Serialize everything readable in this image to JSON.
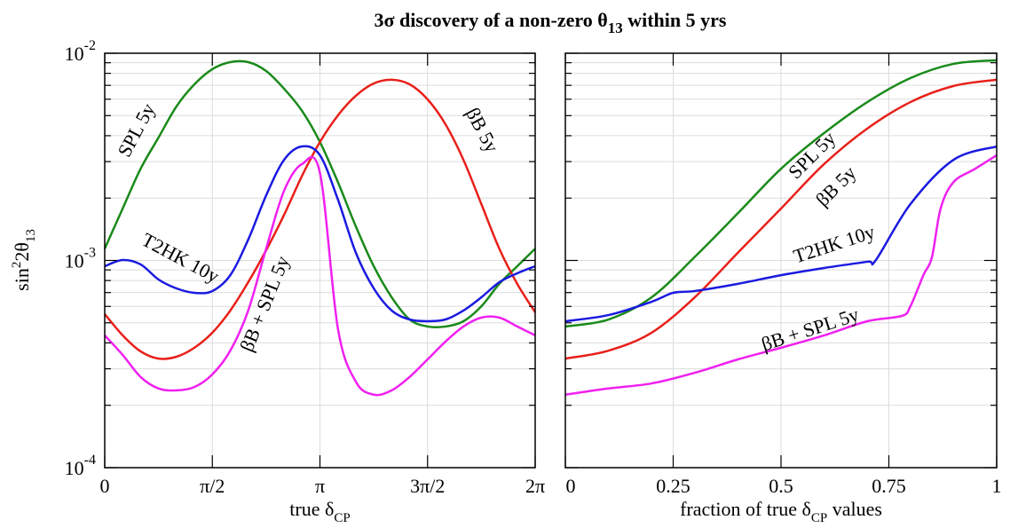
{
  "title": [
    "3σ discovery of a non-zero θ",
    "13",
    " within 5 yrs"
  ],
  "chart_data": [
    {
      "type": "line",
      "yscale": "log",
      "grid": true,
      "xlabel": [
        "true δ",
        "CP"
      ],
      "ylabel": [
        "sin",
        "2",
        "2θ",
        "13"
      ],
      "xlim": [
        0,
        6.2832
      ],
      "xticks": [
        0,
        {
          "value": 1.5708,
          "label": "π/2"
        },
        {
          "value": 3.1416,
          "label": "π"
        },
        {
          "value": 4.7124,
          "label": "3π/2"
        },
        {
          "value": 6.2832,
          "label": "2π"
        }
      ],
      "ylim": [
        0.0001,
        0.01
      ],
      "yticks": [
        {
          "value": 0.0001,
          "label": "10",
          "exponent": "-4"
        },
        {
          "value": 0.001,
          "label": "10",
          "exponent": "-3"
        },
        {
          "value": 0.01,
          "label": "10",
          "exponent": "-2"
        }
      ],
      "yminor": [
        0.0002,
        0.0003,
        0.0004,
        0.0005,
        0.0006,
        0.0007,
        0.0008,
        0.0009,
        0.002,
        0.003,
        0.004,
        0.005,
        0.006,
        0.007,
        0.008,
        0.009
      ],
      "x": [
        0,
        0.2618,
        0.5236,
        0.7854,
        1.0472,
        1.309,
        1.5708,
        1.8326,
        2.0944,
        2.3562,
        2.618,
        2.8798,
        3.1416,
        3.4034,
        3.6652,
        3.927,
        4.1888,
        4.4506,
        4.7124,
        4.9742,
        5.236,
        5.4978,
        5.7596,
        6.0214,
        6.2832
      ],
      "series": [
        {
          "name": "SPL 5y",
          "color": "#1a8a1a",
          "values": [
            0.00114,
            0.00178,
            0.00277,
            0.00392,
            0.00554,
            0.00708,
            0.00838,
            0.00906,
            0.00906,
            0.00821,
            0.00674,
            0.00527,
            0.00373,
            0.00239,
            0.00146,
            0.000938,
            0.000664,
            0.000519,
            0.00048,
            0.00048,
            0.000509,
            0.000601,
            0.000771,
            0.000938,
            0.00114
          ]
        },
        {
          "name": "βB 5y",
          "color": "#e8201a",
          "values": [
            0.000551,
            0.000435,
            0.000364,
            0.000336,
            0.000343,
            0.000379,
            0.000448,
            0.000573,
            0.000785,
            0.00112,
            0.00166,
            0.00256,
            0.00373,
            0.00501,
            0.00623,
            0.00715,
            0.00745,
            0.00708,
            0.00599,
            0.00454,
            0.00306,
            0.00187,
            0.00114,
            0.000771,
            0.000562
          ]
        },
        {
          "name": "T2HK 10y",
          "color": "#1a1ae0",
          "values": [
            0.000938,
            0.001005,
            0.000957,
            0.000809,
            0.000733,
            0.000698,
            0.000712,
            0.000849,
            0.00126,
            0.00206,
            0.00306,
            0.00355,
            0.00322,
            0.00197,
            0.00109,
            0.000733,
            0.000573,
            0.000519,
            0.000509,
            0.000519,
            0.000573,
            0.000664,
            0.000785,
            0.000867,
            0.000938
          ]
        },
        {
          "name": "βB + SPL 5y",
          "color": "#f020f0",
          "values": [
            0.000435,
            0.00035,
            0.000274,
            0.000241,
            0.000236,
            0.000245,
            0.000282,
            0.000367,
            0.000573,
            0.00114,
            0.00217,
            0.00292,
            0.00264,
            0.00047,
            0.00026,
            0.000225,
            0.000236,
            0.000274,
            0.000333,
            0.000406,
            0.00048,
            0.00053,
            0.00053,
            0.00048,
            0.000435
          ]
        }
      ]
    },
    {
      "type": "line",
      "yscale": "log",
      "grid": true,
      "xlabel": [
        "fraction of true δ",
        "CP",
        " values"
      ],
      "xlim": [
        0,
        1
      ],
      "xticks": [
        0,
        0.25,
        0.5,
        0.75,
        1
      ],
      "ylim": [
        0.0001,
        0.01
      ],
      "yticks": [
        0.0001,
        0.001,
        0.01
      ],
      "yminor": [
        0.0002,
        0.0003,
        0.0004,
        0.0005,
        0.0006,
        0.0007,
        0.0008,
        0.0009,
        0.002,
        0.003,
        0.004,
        0.005,
        0.006,
        0.007,
        0.008,
        0.009
      ],
      "series": [
        {
          "name": "SPL 5y",
          "color": "#1a8a1a",
          "x": [
            0,
            0.1,
            0.2,
            0.3,
            0.4,
            0.5,
            0.6,
            0.7,
            0.8,
            0.9,
            1
          ],
          "values": [
            0.00048,
            0.000519,
            0.000664,
            0.00104,
            0.00169,
            0.00277,
            0.00412,
            0.00581,
            0.00759,
            0.00889,
            0.00925
          ]
        },
        {
          "name": "βB 5y",
          "color": "#e8201a",
          "x": [
            0,
            0.1,
            0.2,
            0.3,
            0.4,
            0.5,
            0.6,
            0.7,
            0.8,
            0.9,
            1
          ],
          "values": [
            0.000336,
            0.000367,
            0.000448,
            0.000664,
            0.00109,
            0.00178,
            0.00292,
            0.00433,
            0.00581,
            0.00695,
            0.00745
          ]
        },
        {
          "name": "T2HK 10y",
          "color": "#1a1ae0",
          "x": [
            0,
            0.1,
            0.2,
            0.25,
            0.3,
            0.4,
            0.5,
            0.6,
            0.7,
            0.72,
            0.8,
            0.9,
            1
          ],
          "values": [
            0.000509,
            0.000545,
            0.000632,
            0.000698,
            0.000712,
            0.000771,
            0.000849,
            0.00092,
            0.000986,
            0.001005,
            0.00187,
            0.00306,
            0.00355
          ]
        },
        {
          "name": "βB + SPL 5y",
          "color": "#f020f0",
          "x": [
            0,
            0.1,
            0.2,
            0.3,
            0.4,
            0.5,
            0.6,
            0.7,
            0.78,
            0.8,
            0.83,
            0.85,
            0.87,
            0.9,
            0.95,
            1
          ],
          "values": [
            0.000225,
            0.000241,
            0.000255,
            0.000287,
            0.000333,
            0.000379,
            0.000435,
            0.000509,
            0.00054,
            0.000601,
            0.000849,
            0.00104,
            0.00178,
            0.00239,
            0.00277,
            0.00322
          ]
        }
      ]
    }
  ]
}
